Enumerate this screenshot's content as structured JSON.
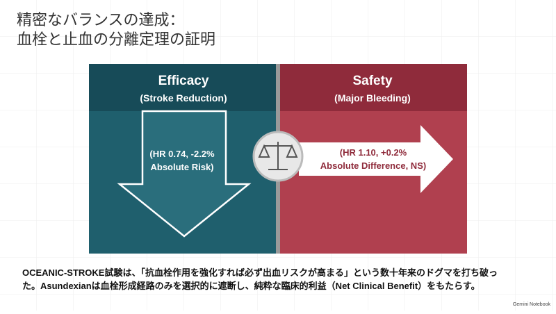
{
  "header": {
    "title_lines": [
      "精密なバランスの達成：",
      "血栓と止血の分離定理の証明"
    ]
  },
  "left_panel": {
    "title": "Efficacy",
    "subtitle": "(Stroke Reduction)",
    "arrow_lines": [
      "(HR 0.74, -2.2%",
      "Absolute Risk)"
    ]
  },
  "right_panel": {
    "title": "Safety",
    "subtitle": "(Major Bleeding)",
    "arrow_lines": [
      "(HR 1.10, +0.2%",
      "Absolute Difference, NS)"
    ]
  },
  "caption": {
    "lines": [
      "OCEANIC-STROKE試験は、「抗血栓作用を強化すれば必ず出血リスクが高まる」という数十年来のドグマを打ち破っ",
      "た。Asundexianは血栓形成経路のみを選択的に遮断し、純粋な臨床的利益（Net Clinical Benefit）をもたらす。"
    ]
  },
  "footer": {
    "brand": "Gemini Notebook"
  }
}
